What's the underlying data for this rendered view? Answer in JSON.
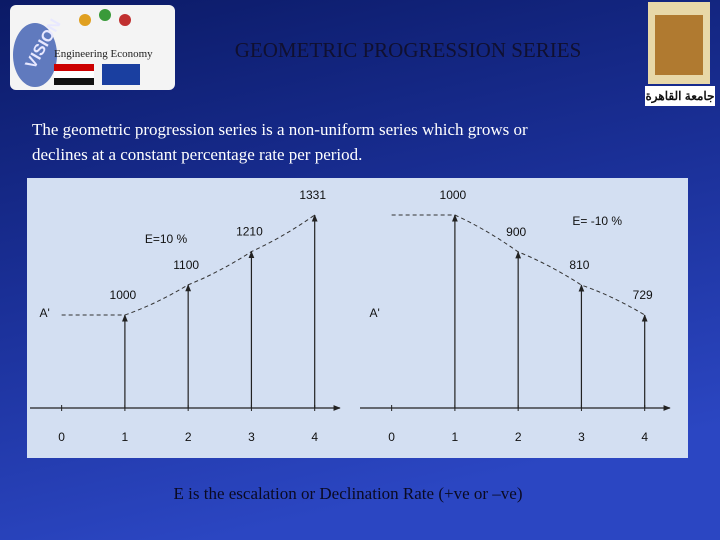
{
  "header": {
    "title": "GEOMETRIC PROGRESSION SERIES",
    "left_logo": [
      "VISION",
      "Engineering Economy"
    ],
    "right_logo": "جامعة القاهرة"
  },
  "intro": [
    "The geometric progression series is a non-uniform series which grows or",
    "declines at a constant percentage rate per period."
  ],
  "chart_data": [
    {
      "type": "cashflow",
      "x": [
        1,
        2,
        3,
        4
      ],
      "values": [
        1000,
        1100,
        1210,
        1331
      ],
      "xlim": [
        -0.5,
        4.4
      ],
      "xticks": [
        0,
        1,
        2,
        3,
        4
      ],
      "annotations": [
        "E=10 %",
        "A'"
      ],
      "color": "#222222"
    },
    {
      "type": "cashflow",
      "x": [
        1,
        2,
        3,
        4
      ],
      "values": [
        1000,
        900,
        810,
        729
      ],
      "xlim": [
        -0.5,
        4.4
      ],
      "xticks": [
        0,
        1,
        2,
        3,
        4
      ],
      "annotations": [
        "E= -10 %",
        "A'"
      ],
      "color": "#222222"
    }
  ],
  "footer": "E is the escalation or Declination Rate (+ve or –ve)"
}
